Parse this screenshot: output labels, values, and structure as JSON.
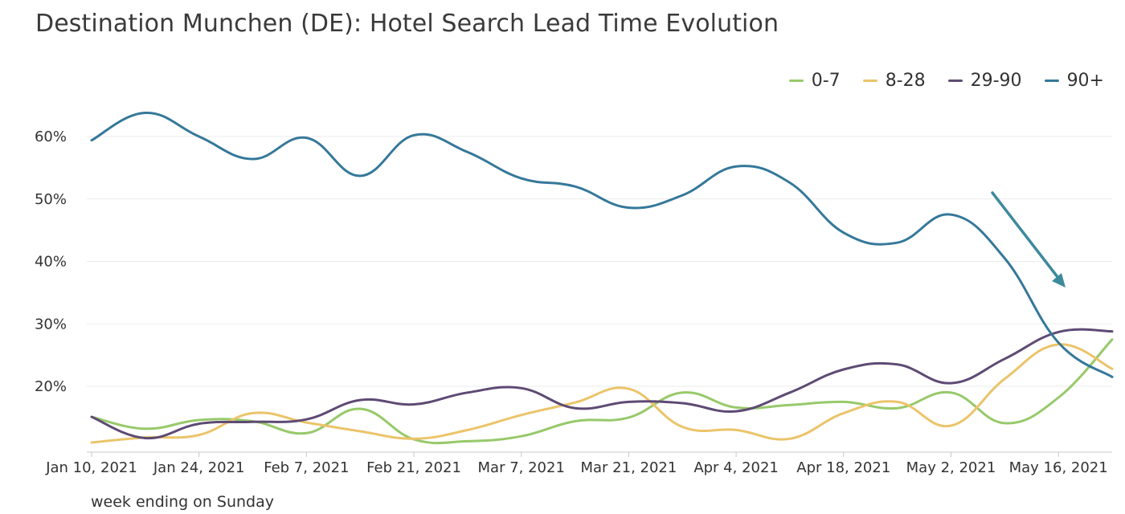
{
  "chart_data": {
    "type": "line",
    "title": "Destination Munchen (DE): Hotel Search Lead Time Evolution",
    "xlabel": "week ending on Sunday",
    "ylabel": "",
    "x": [
      "Jan 10, 2021",
      "Jan 17, 2021",
      "Jan 24, 2021",
      "Jan 31, 2021",
      "Feb 7, 2021",
      "Feb 14, 2021",
      "Feb 21, 2021",
      "Feb 28, 2021",
      "Mar 7, 2021",
      "Mar 14, 2021",
      "Mar 21, 2021",
      "Mar 28, 2021",
      "Apr 4, 2021",
      "Apr 11, 2021",
      "Apr 18, 2021",
      "Apr 25, 2021",
      "May 2, 2021",
      "May 9, 2021",
      "May 16, 2021",
      "May 23, 2021"
    ],
    "x_tick_labels": [
      "Jan 10, 2021",
      "Jan 24, 2021",
      "Feb 7, 2021",
      "Feb 21, 2021",
      "Mar 7, 2021",
      "Mar 21, 2021",
      "Apr 4, 2021",
      "Apr 18, 2021",
      "May 2, 2021",
      "May 16, 2021"
    ],
    "y_tick_labels": [
      "20%",
      "30%",
      "40%",
      "50%",
      "60%"
    ],
    "ylim": [
      10,
      65
    ],
    "legend_position": "top-right",
    "grid": true,
    "series": [
      {
        "name": "0-7",
        "color": "#97c96a",
        "values": [
          15.1,
          13.2,
          14.6,
          14.4,
          12.5,
          16.4,
          11.5,
          11.2,
          12.0,
          14.4,
          15.0,
          19.0,
          16.6,
          17.0,
          17.5,
          16.5,
          19.0,
          14.1,
          18.2,
          27.5
        ]
      },
      {
        "name": "8-28",
        "color": "#ebc46a",
        "values": [
          11.0,
          11.8,
          12.2,
          15.7,
          14.2,
          12.8,
          11.6,
          13.0,
          15.4,
          17.4,
          19.6,
          13.5,
          13.0,
          11.6,
          15.7,
          17.5,
          13.7,
          21.2,
          26.7,
          22.8
        ]
      },
      {
        "name": "29-90",
        "color": "#5e4a74",
        "values": [
          15.1,
          11.7,
          14.0,
          14.3,
          14.7,
          17.8,
          17.1,
          19.0,
          19.7,
          16.5,
          17.5,
          17.3,
          16.0,
          19.0,
          22.7,
          23.5,
          20.5,
          24.4,
          28.7,
          28.8
        ]
      },
      {
        "name": "90+",
        "color": "#35789a",
        "values": [
          59.4,
          63.8,
          60.0,
          56.4,
          59.8,
          53.7,
          60.2,
          57.5,
          53.3,
          52.0,
          48.6,
          50.6,
          55.2,
          52.6,
          44.6,
          43.0,
          47.5,
          40.5,
          27.0,
          21.5
        ]
      }
    ],
    "annotations": [
      {
        "type": "arrow",
        "color": "#3d8a9e",
        "meaning": "downward trend of 90+ series"
      }
    ]
  }
}
